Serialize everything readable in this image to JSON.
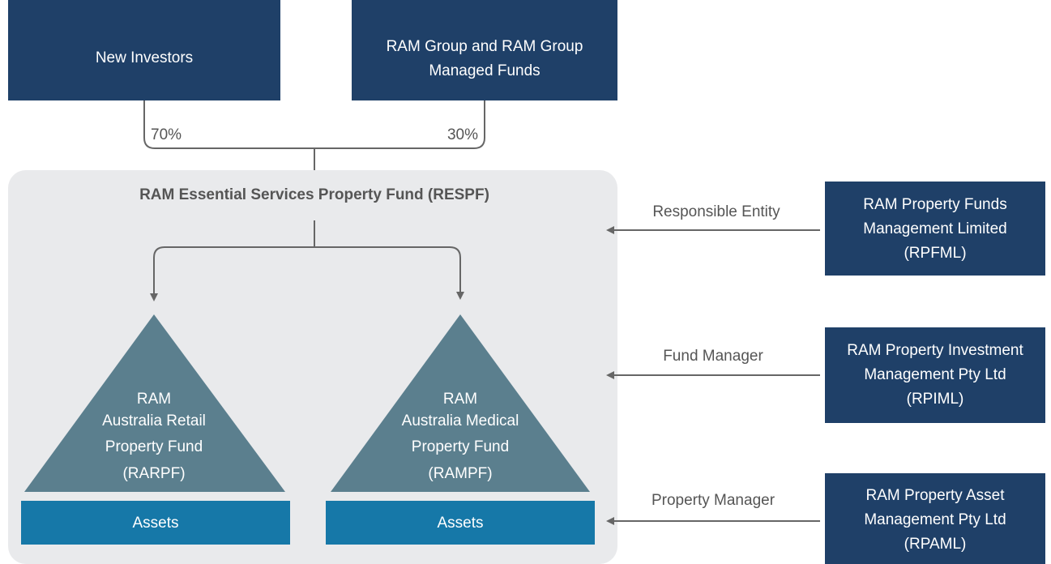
{
  "investors": [
    {
      "label": [
        "New Investors"
      ],
      "share": "70%"
    },
    {
      "label": [
        "RAM Group and RAM Group",
        "Managed Funds"
      ],
      "share": "30%"
    }
  ],
  "fund": {
    "title": "RAM Essential Services Property Fund (RESPF)",
    "subfunds": [
      {
        "label": [
          "RAM",
          "Australia Retail",
          "Property Fund",
          "(RARPF)"
        ],
        "assets": "Assets"
      },
      {
        "label": [
          "RAM",
          "Australia Medical",
          "Property Fund",
          "(RAMPF)"
        ],
        "assets": "Assets"
      }
    ]
  },
  "managers": [
    {
      "role": "Responsible Entity",
      "label": [
        "RAM Property Funds",
        "Management Limited",
        "(RPFML)"
      ]
    },
    {
      "role": "Fund Manager",
      "label": [
        "RAM Property Investment",
        "Management Pty Ltd",
        "(RPIML)"
      ]
    },
    {
      "role": "Property Manager",
      "label": [
        "RAM Property Asset",
        "Management Pty Ltd",
        "(RPAML)"
      ]
    }
  ]
}
